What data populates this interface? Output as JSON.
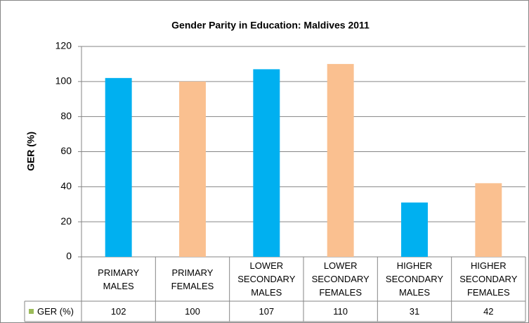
{
  "chart_data": {
    "type": "bar",
    "title": "Gender Parity in Education: Maldives 2011",
    "y_label": "GER (%)",
    "series_name": "GER (%)",
    "legend_color": "#9bbb59",
    "categories": [
      "PRIMARY MALES",
      "PRIMARY FEMALES",
      "LOWER SECONDARY MALES",
      "LOWER SECONDARY FEMALES",
      "HIGHER SECONDARY MALES",
      "HIGHER SECONDARY FEMALES"
    ],
    "values": [
      102,
      100,
      107,
      110,
      31,
      42
    ],
    "colors": [
      "#00b0f0",
      "#fac090",
      "#00b0f0",
      "#fac090",
      "#00b0f0",
      "#fac090"
    ],
    "ylim": [
      0,
      120
    ],
    "yticks": [
      0,
      20,
      40,
      60,
      80,
      100,
      120
    ],
    "grid": true
  }
}
